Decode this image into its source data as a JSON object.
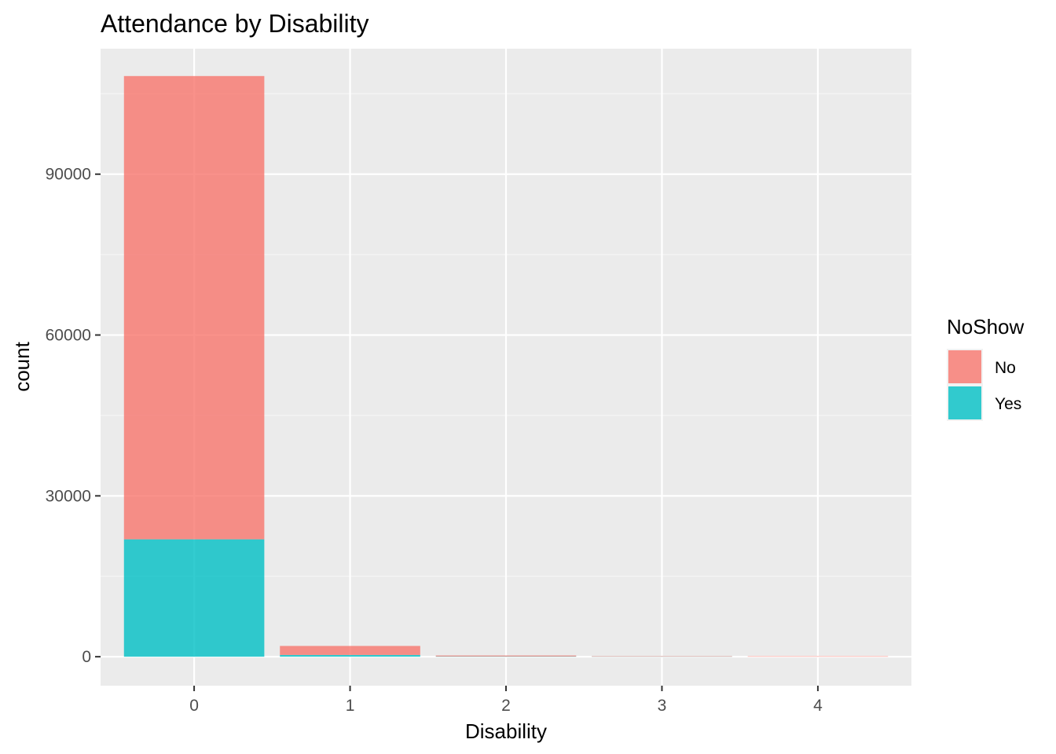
{
  "chart_data": {
    "type": "bar",
    "stacked": true,
    "title": "Attendance by Disability",
    "xlabel": "Disability",
    "ylabel": "count",
    "categories": [
      "0",
      "1",
      "2",
      "3",
      "4"
    ],
    "series": [
      {
        "name": "No",
        "values": [
          86400,
          1680,
          180,
          10,
          2
        ]
      },
      {
        "name": "Yes",
        "values": [
          21900,
          330,
          45,
          3,
          0
        ]
      }
    ],
    "ylim": [
      -5400,
      113400
    ],
    "yticks": [
      0,
      30000,
      60000,
      90000
    ],
    "yticks_labels": [
      "0",
      "30000",
      "60000",
      "90000"
    ],
    "legend": {
      "title": "NoShow",
      "position": "right"
    },
    "grid": true,
    "colors": {
      "No": "#f8766d",
      "Yes": "#00bfc4",
      "panel": "#ebebeb",
      "grid_major": "#ffffff",
      "grid_minor": "#f5f5f5",
      "tick": "#333333"
    }
  }
}
